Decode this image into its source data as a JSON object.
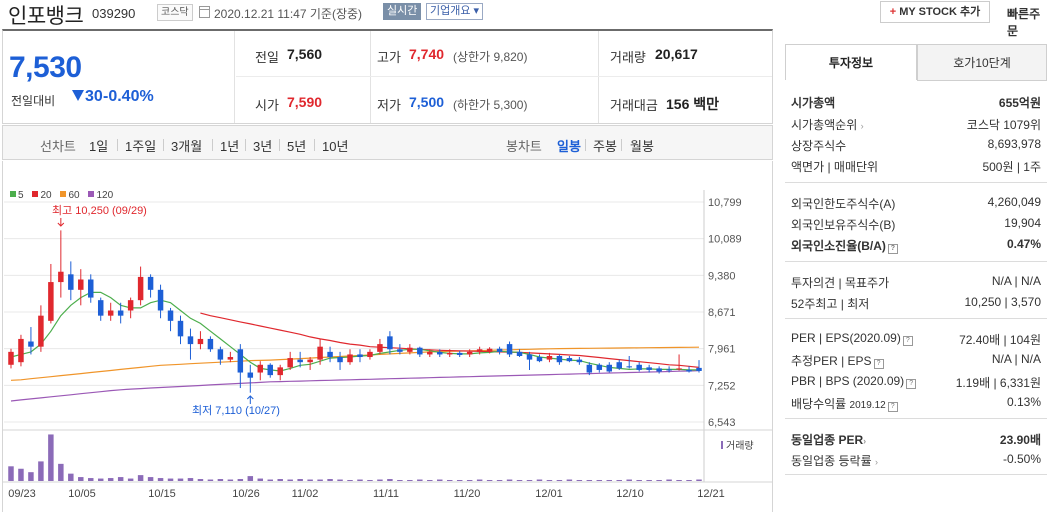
{
  "header": {
    "stock_name": "인포뱅크",
    "stock_code": "039290",
    "market": "코스닥",
    "datetime": "2020.12.21 11:47 기준(장중)",
    "realtime_label": "실시간",
    "corp_info_label": "기업개요 ▾",
    "mystock_label": "MY STOCK 추가",
    "quick_order_label": "빠른주문"
  },
  "price": {
    "current": "7,530",
    "change_label": "전일대비",
    "change_value": "30",
    "change_pct": "-0.40%",
    "prev_close_label": "전일",
    "prev_close": "7,560",
    "high_label": "고가",
    "high": "7,740",
    "upper_limit": "(상한가 9,820)",
    "volume_label": "거래량",
    "volume": "20,617",
    "open_label": "시가",
    "open": "7,590",
    "low_label": "저가",
    "low": "7,500",
    "lower_limit": "(하한가 5,300)",
    "value_label": "거래대금",
    "trade_value": "156 백만"
  },
  "period_tabs": {
    "line_chart_label": "선차트",
    "periods": [
      "1일",
      "1주일",
      "3개월",
      "1년",
      "3년",
      "5년",
      "10년"
    ],
    "candle_label": "봉차트",
    "candle_periods": [
      "일봉",
      "주봉",
      "월봉"
    ],
    "active_candle": "일봉"
  },
  "chart_data": {
    "type": "candlestick",
    "legend": [
      "5",
      "20",
      "60",
      "120"
    ],
    "ma_colors": {
      "5": "#4cae4c",
      "20": "#e0282e",
      "60": "#f0952a",
      "120": "#9b59b6"
    },
    "up_color": "#e0282e",
    "down_color": "#1d5fd6",
    "yaxis_ticks": [
      "10,799",
      "10,089",
      "9,380",
      "8,671",
      "7,961",
      "7,252",
      "6,543"
    ],
    "ylim": [
      6543,
      10799
    ],
    "xaxis_ticks": [
      "09/23",
      "10/05",
      "10/15",
      "10/26",
      "11/02",
      "11/11",
      "11/20",
      "12/01",
      "12/10",
      "12/21"
    ],
    "annotation_high": "최고 10,250 (09/29)",
    "annotation_low": "최저 7,110 (10/27)",
    "volume_label": "거래량",
    "candles": [
      {
        "o": 7650,
        "c": 7900,
        "h": 7960,
        "l": 7580
      },
      {
        "o": 7700,
        "c": 8150,
        "h": 8230,
        "l": 7620
      },
      {
        "o": 8100,
        "c": 8000,
        "h": 8380,
        "l": 7850
      },
      {
        "o": 8000,
        "c": 8600,
        "h": 8800,
        "l": 7900
      },
      {
        "o": 8500,
        "c": 9250,
        "h": 9600,
        "l": 8450
      },
      {
        "o": 9250,
        "c": 9450,
        "h": 10250,
        "l": 8950
      },
      {
        "o": 9400,
        "c": 9100,
        "h": 9650,
        "l": 8900
      },
      {
        "o": 9100,
        "c": 9300,
        "h": 9500,
        "l": 8800
      },
      {
        "o": 9300,
        "c": 8950,
        "h": 9400,
        "l": 8850
      },
      {
        "o": 8900,
        "c": 8600,
        "h": 8950,
        "l": 8500
      },
      {
        "o": 8600,
        "c": 8700,
        "h": 8850,
        "l": 8500
      },
      {
        "o": 8700,
        "c": 8600,
        "h": 8850,
        "l": 8450
      },
      {
        "o": 8700,
        "c": 8900,
        "h": 8950,
        "l": 8550
      },
      {
        "o": 8900,
        "c": 9350,
        "h": 9550,
        "l": 8800
      },
      {
        "o": 9350,
        "c": 9100,
        "h": 9400,
        "l": 8950
      },
      {
        "o": 9100,
        "c": 8700,
        "h": 9200,
        "l": 8550
      },
      {
        "o": 8700,
        "c": 8500,
        "h": 8750,
        "l": 8300
      },
      {
        "o": 8500,
        "c": 8200,
        "h": 8600,
        "l": 8050
      },
      {
        "o": 8200,
        "c": 8050,
        "h": 8350,
        "l": 7750
      },
      {
        "o": 8050,
        "c": 8150,
        "h": 8300,
        "l": 7950
      },
      {
        "o": 8150,
        "c": 7950,
        "h": 8200,
        "l": 7900
      },
      {
        "o": 7950,
        "c": 7750,
        "h": 8000,
        "l": 7650
      },
      {
        "o": 7750,
        "c": 7800,
        "h": 7900,
        "l": 7700
      },
      {
        "o": 7950,
        "c": 7500,
        "h": 8050,
        "l": 7200
      },
      {
        "o": 7500,
        "c": 7400,
        "h": 7650,
        "l": 7110
      },
      {
        "o": 7500,
        "c": 7650,
        "h": 7720,
        "l": 7350
      },
      {
        "o": 7650,
        "c": 7450,
        "h": 7680,
        "l": 7400
      },
      {
        "o": 7450,
        "c": 7600,
        "h": 7650,
        "l": 7350
      },
      {
        "o": 7600,
        "c": 7780,
        "h": 7900,
        "l": 7550
      },
      {
        "o": 7750,
        "c": 7700,
        "h": 7900,
        "l": 7600
      },
      {
        "o": 7700,
        "c": 7750,
        "h": 7800,
        "l": 7550
      },
      {
        "o": 7750,
        "c": 8000,
        "h": 8150,
        "l": 7650
      },
      {
        "o": 7900,
        "c": 7800,
        "h": 8000,
        "l": 7700
      },
      {
        "o": 7800,
        "c": 7700,
        "h": 7900,
        "l": 7550
      },
      {
        "o": 7700,
        "c": 7850,
        "h": 7950,
        "l": 7650
      },
      {
        "o": 7850,
        "c": 7800,
        "h": 7950,
        "l": 7700
      },
      {
        "o": 7800,
        "c": 7900,
        "h": 7950,
        "l": 7750
      },
      {
        "o": 7900,
        "c": 8050,
        "h": 8150,
        "l": 7850
      },
      {
        "o": 8200,
        "c": 7950,
        "h": 8300,
        "l": 7850
      },
      {
        "o": 7950,
        "c": 7900,
        "h": 8050,
        "l": 7850
      },
      {
        "o": 7900,
        "c": 7980,
        "h": 8050,
        "l": 7850
      },
      {
        "o": 7980,
        "c": 7850,
        "h": 8000,
        "l": 7800
      },
      {
        "o": 7850,
        "c": 7900,
        "h": 7950,
        "l": 7800
      },
      {
        "o": 7900,
        "c": 7850,
        "h": 7950,
        "l": 7800
      },
      {
        "o": 7850,
        "c": 7880,
        "h": 7950,
        "l": 7800
      },
      {
        "o": 7880,
        "c": 7840,
        "h": 7920,
        "l": 7800
      },
      {
        "o": 7850,
        "c": 7900,
        "h": 7950,
        "l": 7800
      },
      {
        "o": 7900,
        "c": 7950,
        "h": 8000,
        "l": 7850
      },
      {
        "o": 7900,
        "c": 7960,
        "h": 7990,
        "l": 7870
      },
      {
        "o": 7960,
        "c": 7900,
        "h": 8000,
        "l": 7850
      },
      {
        "o": 8050,
        "c": 7850,
        "h": 8100,
        "l": 7800
      },
      {
        "o": 7900,
        "c": 7820,
        "h": 7950,
        "l": 7800
      },
      {
        "o": 7850,
        "c": 7750,
        "h": 7900,
        "l": 7550
      },
      {
        "o": 7800,
        "c": 7720,
        "h": 7850,
        "l": 7700
      },
      {
        "o": 7750,
        "c": 7820,
        "h": 7880,
        "l": 7700
      },
      {
        "o": 7820,
        "c": 7700,
        "h": 7850,
        "l": 7650
      },
      {
        "o": 7780,
        "c": 7720,
        "h": 7820,
        "l": 7700
      },
      {
        "o": 7750,
        "c": 7700,
        "h": 7800,
        "l": 7650
      },
      {
        "o": 7650,
        "c": 7500,
        "h": 7700,
        "l": 7450
      },
      {
        "o": 7650,
        "c": 7550,
        "h": 7680,
        "l": 7500
      },
      {
        "o": 7650,
        "c": 7520,
        "h": 7700,
        "l": 7500
      },
      {
        "o": 7700,
        "c": 7580,
        "h": 7750,
        "l": 7550
      },
      {
        "o": 7620,
        "c": 7600,
        "h": 7820,
        "l": 7580
      },
      {
        "o": 7650,
        "c": 7550,
        "h": 7700,
        "l": 7520
      },
      {
        "o": 7600,
        "c": 7550,
        "h": 7650,
        "l": 7500
      },
      {
        "o": 7580,
        "c": 7520,
        "h": 7620,
        "l": 7480
      },
      {
        "o": 7560,
        "c": 7540,
        "h": 7620,
        "l": 7500
      },
      {
        "o": 7560,
        "c": 7580,
        "h": 7850,
        "l": 7540
      },
      {
        "o": 7550,
        "c": 7520,
        "h": 7620,
        "l": 7500
      },
      {
        "o": 7590,
        "c": 7530,
        "h": 7740,
        "l": 7500
      }
    ],
    "ma5": [
      7800,
      7850,
      7900,
      8050,
      8300,
      8600,
      8800,
      8950,
      9050,
      9050,
      8950,
      8800,
      8750,
      8750,
      8850,
      8900,
      8850,
      8700,
      8550,
      8450,
      8300,
      8150,
      8000,
      7850,
      7700,
      7580,
      7550,
      7530,
      7580,
      7640,
      7660,
      7720,
      7780,
      7790,
      7800,
      7820,
      7830,
      7870,
      7900,
      7930,
      7950,
      7950,
      7920,
      7890,
      7870,
      7860,
      7860,
      7880,
      7890,
      7910,
      7900,
      7890,
      7850,
      7800,
      7780,
      7760,
      7740,
      7730,
      7680,
      7640,
      7600,
      7580,
      7560,
      7570,
      7570,
      7560,
      7560,
      7560,
      7550,
      7550
    ],
    "ma20": [
      null,
      null,
      null,
      null,
      null,
      null,
      null,
      null,
      null,
      null,
      null,
      null,
      null,
      null,
      null,
      null,
      null,
      null,
      null,
      8650,
      8600,
      8560,
      8520,
      8480,
      8440,
      8400,
      8360,
      8320,
      8280,
      8240,
      8190,
      8150,
      8120,
      8080,
      8050,
      8030,
      8000,
      7990,
      7980,
      7970,
      7960,
      7950,
      7940,
      7930,
      7925,
      7920,
      7915,
      7910,
      7905,
      7900,
      7895,
      7890,
      7880,
      7870,
      7860,
      7850,
      7840,
      7830,
      7810,
      7790,
      7770,
      7750,
      7730,
      7710,
      7690,
      7670,
      7650,
      7640,
      7620,
      7600
    ],
    "ma60": [
      7350,
      7360,
      7380,
      7400,
      7420,
      7440,
      7460,
      7480,
      7500,
      7520,
      7540,
      7560,
      7580,
      7600,
      7620,
      7640,
      7650,
      7660,
      7670,
      7680,
      7690,
      7700,
      7710,
      7720,
      7730,
      7735,
      7740,
      7750,
      7760,
      7770,
      7780,
      7790,
      7800,
      7810,
      7820,
      7830,
      7840,
      7850,
      7860,
      7870,
      7880,
      7890,
      7900,
      7905,
      7910,
      7915,
      7920,
      7925,
      7930,
      7935,
      7940,
      7945,
      7950,
      7955,
      7960,
      7962,
      7964,
      7966,
      7968,
      7970,
      7972,
      7974,
      7976,
      7978,
      7980,
      7982,
      7984,
      7986,
      7988,
      7990
    ],
    "ma120": [
      6950,
      6970,
      6990,
      7010,
      7030,
      7050,
      7070,
      7090,
      7110,
      7130,
      7150,
      7165,
      7180,
      7190,
      7200,
      7210,
      7220,
      7230,
      7240,
      7250,
      7260,
      7270,
      7280,
      7290,
      7300,
      7310,
      7320,
      7325,
      7330,
      7335,
      7340,
      7345,
      7350,
      7355,
      7360,
      7365,
      7370,
      7375,
      7380,
      7385,
      7390,
      7395,
      7400,
      7405,
      7410,
      7415,
      7420,
      7425,
      7430,
      7435,
      7440,
      7445,
      7450,
      7455,
      7460,
      7465,
      7470,
      7475,
      7480,
      7485,
      7490,
      7495,
      7500,
      7505,
      7510,
      7515,
      7520,
      7525,
      7530,
      7535
    ],
    "volumes": [
      30,
      25,
      18,
      40,
      95,
      35,
      15,
      8,
      6,
      5,
      6,
      8,
      5,
      12,
      8,
      6,
      5,
      5,
      6,
      4,
      3,
      4,
      3,
      4,
      10,
      5,
      3,
      4,
      3,
      4,
      3,
      3,
      4,
      3,
      2,
      3,
      2,
      3,
      4,
      2,
      2,
      3,
      2,
      3,
      2,
      2,
      2,
      3,
      2,
      2,
      3,
      2,
      2,
      3,
      2,
      2,
      3,
      2,
      2,
      2,
      2,
      2,
      3,
      2,
      2,
      2,
      3,
      2,
      2,
      3
    ],
    "vol_max": 100
  },
  "invest_info": {
    "tab_active": "투자정보",
    "tab_inactive": "호가10단계",
    "market_cap_label": "시가총액",
    "market_cap": "655억원",
    "market_cap_rank_label": "시가총액순위",
    "market_cap_rank": "코스닥 1079위",
    "listed_shares_label": "상장주식수",
    "listed_shares": "8,693,978",
    "par_label": "액면가 | 매매단위",
    "par_value": "500원 | 1주",
    "foreign_limit_label": "외국인한도주식수(A)",
    "foreign_limit": "4,260,049",
    "foreign_hold_label": "외국인보유주식수(B)",
    "foreign_hold": "19,904",
    "foreign_rate_label": "외국인소진율(B/A)",
    "foreign_rate": "0.47%",
    "opinion_label": "투자의견 | 목표주가",
    "opinion": "N/A | N/A",
    "week52_label": "52주최고 | 최저",
    "week52": "10,250 | 3,570",
    "per_label": "PER | EPS(2020.09)",
    "per": "72.40배 | 104원",
    "est_per_label": "추정PER | EPS",
    "est_per": "N/A | N/A",
    "pbr_label": "PBR | BPS (2020.09)",
    "pbr": "1.19배 | 6,331원",
    "div_label": "배당수익률",
    "div_date": "2019.12",
    "div": "0.13%",
    "sector_per_label": "동일업종 PER",
    "sector_per": "23.90배",
    "sector_change_label": "동일업종 등락률",
    "sector_change": "-0.50%"
  }
}
